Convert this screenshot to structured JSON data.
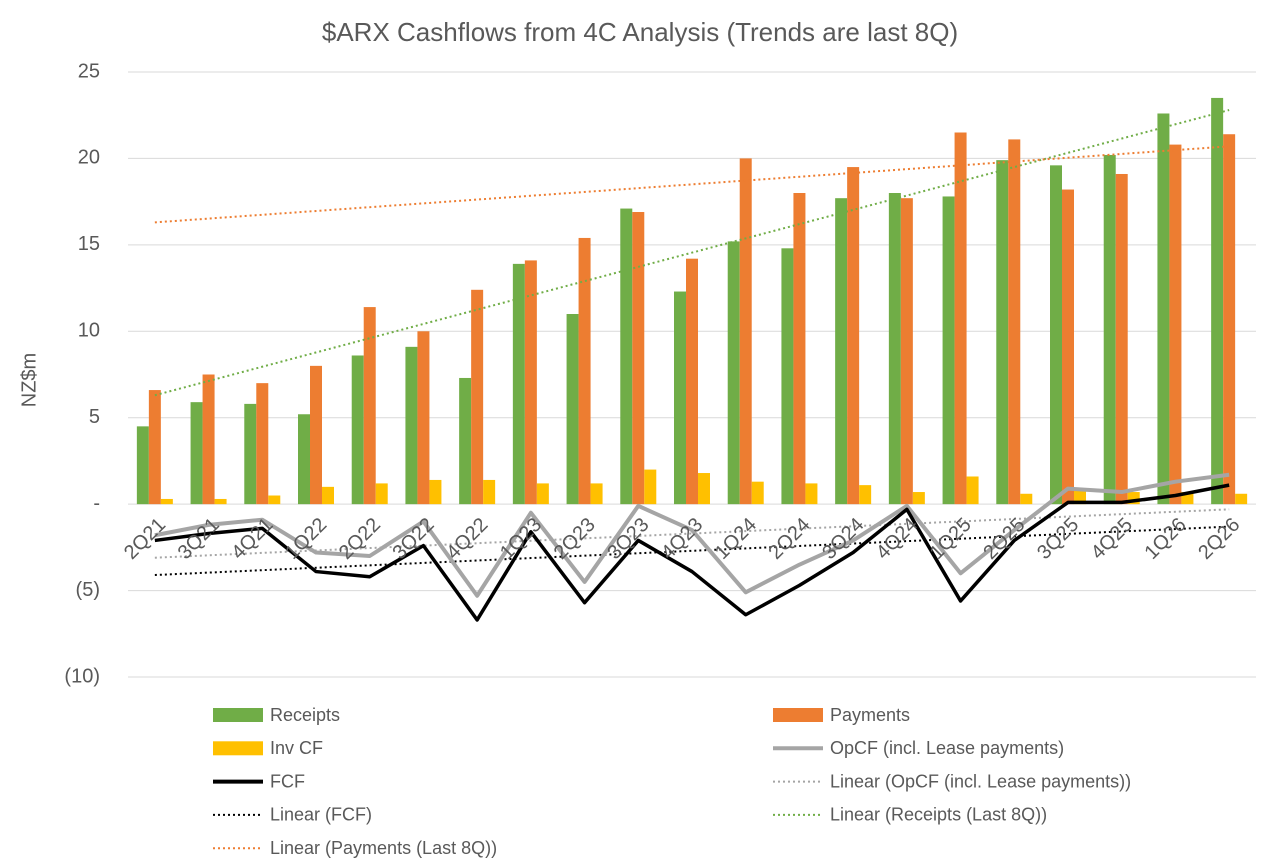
{
  "chart_data": {
    "type": "combo",
    "title": "$ARX Cashflows from 4C Analysis (Trends are last 8Q)",
    "y_label": "NZ$m",
    "categories": [
      "2Q21",
      "3Q21",
      "4Q21",
      "1Q22",
      "2Q22",
      "3Q22",
      "4Q22",
      "1Q23",
      "2Q23",
      "3Q23",
      "4Q23",
      "1Q24",
      "2Q24",
      "3Q24",
      "4Q24",
      "1Q25",
      "2Q25",
      "3Q25",
      "4Q25",
      "1Q26",
      "2Q26"
    ],
    "ylim": [
      -10,
      25
    ],
    "yticks": [
      25,
      20,
      15,
      10,
      5,
      {
        "value": 0,
        "label": "-"
      },
      {
        "value": -5,
        "label": "(5)"
      },
      {
        "value": -10,
        "label": "(10)"
      }
    ],
    "grid": true,
    "series": [
      {
        "name": "Receipts",
        "type": "bar",
        "color": "#70ad47",
        "values": [
          4.5,
          5.9,
          5.8,
          5.2,
          8.6,
          9.1,
          7.3,
          13.9,
          11.0,
          17.1,
          12.3,
          15.2,
          14.8,
          17.7,
          18.0,
          17.8,
          19.9,
          19.6,
          20.2,
          22.6,
          23.5
        ]
      },
      {
        "name": "Payments",
        "type": "bar",
        "color": "#ed7d31",
        "values": [
          6.6,
          7.5,
          7.0,
          8.0,
          11.4,
          10.0,
          12.4,
          14.1,
          15.4,
          16.9,
          14.2,
          20.0,
          18.0,
          19.5,
          17.7,
          21.5,
          21.1,
          18.2,
          19.1,
          20.8,
          21.4
        ]
      },
      {
        "name": "Inv CF",
        "type": "bar",
        "color": "#ffc000",
        "values": [
          0.3,
          0.3,
          0.5,
          1.0,
          1.2,
          1.4,
          1.4,
          1.2,
          1.2,
          2.0,
          1.8,
          1.3,
          1.2,
          1.1,
          0.7,
          1.6,
          0.6,
          0.8,
          0.7,
          0.7,
          0.6
        ]
      },
      {
        "name": "OpCF (incl. Lease payments)",
        "type": "line",
        "color": "#a5a5a5",
        "values": [
          -1.8,
          -1.2,
          -0.9,
          -2.8,
          -3.0,
          -1.0,
          -5.3,
          -0.5,
          -4.5,
          -0.1,
          -1.5,
          -5.1,
          -3.5,
          -2.1,
          -0.1,
          -4.0,
          -1.5,
          0.9,
          0.7,
          1.3,
          1.7
        ]
      },
      {
        "name": "FCF",
        "type": "line",
        "color": "#000000",
        "values": [
          -2.1,
          -1.7,
          -1.4,
          -3.9,
          -4.2,
          -2.4,
          -6.7,
          -1.6,
          -5.7,
          -2.1,
          -3.9,
          -6.4,
          -4.7,
          -2.8,
          -0.3,
          -5.6,
          -2.1,
          0.1,
          0.1,
          0.5,
          1.1
        ]
      },
      {
        "name": "Linear (OpCF (incl. Lease payments))",
        "type": "trend",
        "color": "#a5a5a5",
        "x": [
          "2Q21",
          "2Q26"
        ],
        "values": [
          -3.1,
          -0.3
        ]
      },
      {
        "name": "Linear (FCF)",
        "type": "trend",
        "color": "#000000",
        "x": [
          "2Q21",
          "2Q26"
        ],
        "values": [
          -4.1,
          -1.3
        ]
      },
      {
        "name": "Linear (Receipts (Last 8Q))",
        "type": "trend",
        "color": "#70ad47",
        "x": [
          "2Q21",
          "2Q26"
        ],
        "values": [
          6.3,
          22.8
        ]
      },
      {
        "name": "Linear (Payments (Last 8Q))",
        "type": "trend",
        "color": "#ed7d31",
        "x": [
          "2Q21",
          "2Q26"
        ],
        "values": [
          16.3,
          20.7
        ]
      }
    ]
  }
}
